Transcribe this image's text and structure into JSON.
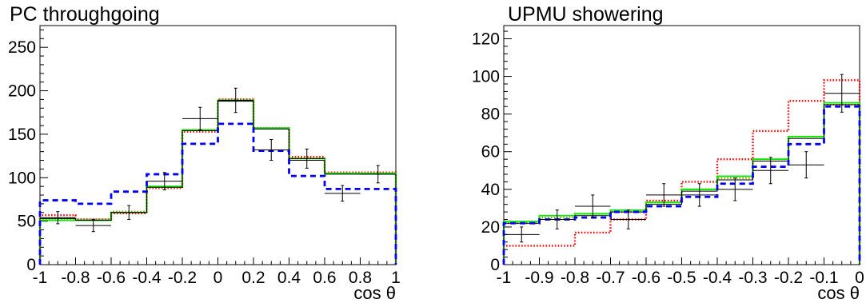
{
  "chart_data": [
    {
      "type": "histogram",
      "title": "PC throughgoing",
      "xlabel": "cos θ",
      "ylabel": "",
      "xlim": [
        -1,
        1
      ],
      "ylim": [
        0,
        275
      ],
      "x_ticks": [
        -1,
        -0.8,
        -0.6,
        -0.4,
        -0.2,
        0,
        0.2,
        0.4,
        0.6,
        0.8,
        1
      ],
      "x_tick_labels": [
        "-1",
        "-0.8",
        "-0.6",
        "-0.4",
        "-0.2",
        "0",
        "0.2",
        "0.4",
        "0.6",
        "0.8",
        "1"
      ],
      "y_ticks": [
        0,
        50,
        100,
        150,
        200,
        250
      ],
      "y_tick_labels": [
        "0",
        "50",
        "100",
        "150",
        "200",
        "250"
      ],
      "bin_edges": [
        -1,
        -0.8,
        -0.6,
        -0.4,
        -0.2,
        0,
        0.2,
        0.4,
        0.6,
        0.8,
        1
      ],
      "data": {
        "x": [
          -0.9,
          -0.7,
          -0.5,
          -0.3,
          -0.1,
          0.1,
          0.3,
          0.5,
          0.7,
          0.9
        ],
        "y": [
          54,
          45,
          60,
          96,
          168,
          189,
          132,
          122,
          82,
          104
        ],
        "yerr": [
          7,
          7,
          8,
          10,
          13,
          14,
          12,
          11,
          9,
          10
        ]
      },
      "series": [
        {
          "style": "red-dotted",
          "color": "#ff0000",
          "values": [
            57,
            52,
            59,
            88,
            153,
            190,
            157,
            124,
            106,
            106
          ]
        },
        {
          "style": "olive-dotted",
          "color": "#a09a00",
          "values": [
            53,
            52,
            61,
            89,
            155,
            190,
            157,
            122,
            105,
            105
          ]
        },
        {
          "style": "green-solid",
          "color": "#00ee00",
          "values": [
            51,
            51,
            60,
            90,
            155,
            189,
            157,
            122,
            105,
            105
          ]
        },
        {
          "style": "black-solid",
          "color": "#000000",
          "values": [
            53,
            51,
            60,
            89,
            154,
            188,
            156,
            120,
            104,
            104
          ]
        },
        {
          "style": "blue-dashed",
          "color": "#0000ff",
          "values": [
            74,
            70,
            84,
            104,
            139,
            162,
            131,
            102,
            87,
            87
          ]
        }
      ]
    },
    {
      "type": "histogram",
      "title": "UPMU showering",
      "xlabel": "cos θ",
      "ylabel": "",
      "xlim": [
        -1,
        0
      ],
      "ylim": [
        0,
        127
      ],
      "x_ticks": [
        -1,
        -0.9,
        -0.8,
        -0.7,
        -0.6,
        -0.5,
        -0.4,
        -0.3,
        -0.2,
        -0.1,
        0
      ],
      "x_tick_labels": [
        "-1",
        "-0.9",
        "-0.8",
        "-0.7",
        "-0.6",
        "-0.5",
        "-0.4",
        "-0.3",
        "-0.2",
        "-0.1",
        "0"
      ],
      "y_ticks": [
        0,
        20,
        40,
        60,
        80,
        100,
        120
      ],
      "y_tick_labels": [
        "0",
        "20",
        "40",
        "60",
        "80",
        "100",
        "120"
      ],
      "bin_edges": [
        -1,
        -0.9,
        -0.8,
        -0.7,
        -0.6,
        -0.5,
        -0.4,
        -0.3,
        -0.2,
        -0.1,
        0
      ],
      "data": {
        "x": [
          -0.95,
          -0.85,
          -0.75,
          -0.65,
          -0.55,
          -0.45,
          -0.35,
          -0.25,
          -0.15,
          -0.05
        ],
        "y": [
          16,
          24,
          31,
          24,
          37,
          37,
          40,
          50,
          53,
          91
        ],
        "yerr": [
          4,
          5,
          6,
          5,
          6,
          6,
          6,
          7,
          7,
          10
        ]
      },
      "series": [
        {
          "style": "red-dotted",
          "color": "#ff0000",
          "values": [
            10,
            10,
            17,
            24,
            34,
            44,
            56,
            71,
            87,
            98
          ]
        },
        {
          "style": "olive-dotted",
          "color": "#a09a00",
          "values": [
            22,
            25,
            27,
            28,
            33,
            40,
            46,
            56,
            68,
            85
          ]
        },
        {
          "style": "green-solid",
          "color": "#00ee00",
          "values": [
            23,
            26,
            27,
            29,
            33,
            40,
            47,
            56,
            68,
            86
          ]
        },
        {
          "style": "black-solid",
          "color": "#000000",
          "values": [
            22,
            24,
            26,
            28,
            32,
            39,
            45,
            55,
            67,
            85
          ]
        },
        {
          "style": "blue-dashed",
          "color": "#0000ff",
          "values": [
            22,
            24,
            25,
            28,
            31,
            36,
            43,
            52,
            64,
            84
          ]
        }
      ]
    }
  ]
}
